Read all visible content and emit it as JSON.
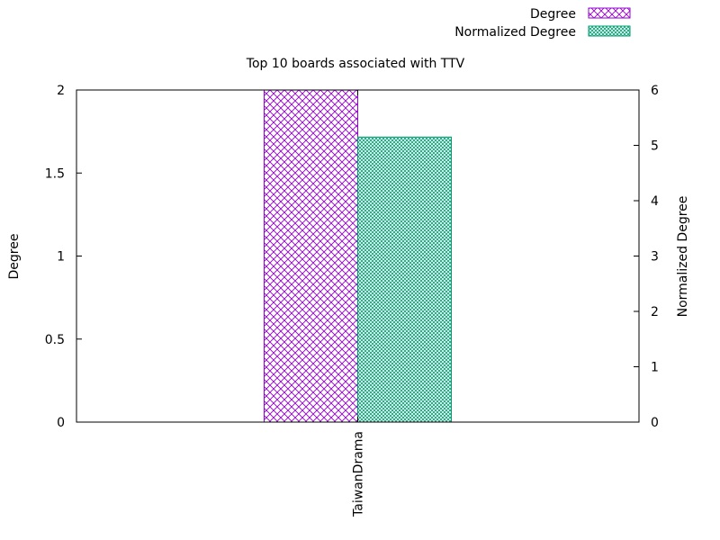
{
  "chart_data": {
    "type": "bar",
    "title": "Top 10 boards associated with TTV",
    "categories": [
      "TaiwanDrama"
    ],
    "series": [
      {
        "name": "Degree",
        "axis": "left",
        "values": [
          2
        ],
        "color": "#9400d3",
        "pattern": "crosshatch"
      },
      {
        "name": "Normalized Degree",
        "axis": "right",
        "values": [
          5.15
        ],
        "color": "#009e73",
        "pattern": "fine-crosshatch"
      }
    ],
    "ylabel": "Degree",
    "y2label": "Normalized Degree",
    "ylim": [
      0,
      2
    ],
    "y2lim": [
      0,
      6
    ],
    "yticks": [
      "0",
      "0.5",
      "1",
      "1.5",
      "2"
    ],
    "y2ticks": [
      "0",
      "1",
      "2",
      "3",
      "4",
      "5",
      "6"
    ],
    "grid": false,
    "legend_position": "top-right"
  }
}
